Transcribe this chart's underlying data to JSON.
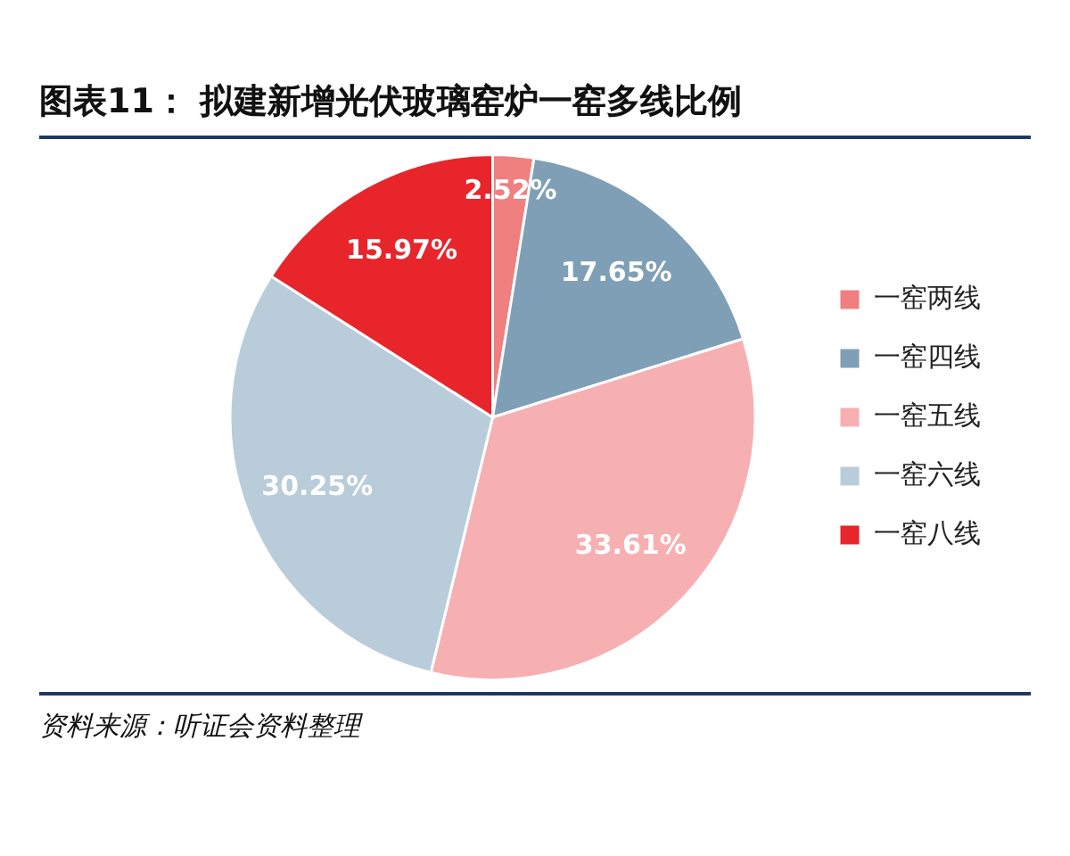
{
  "chart_data": {
    "type": "pie",
    "title": "图表11：  拟建新增光伏玻璃窑炉一窑多线比例",
    "categories": [
      "一窑两线",
      "一窑四线",
      "一窑五线",
      "一窑六线",
      "一窑八线"
    ],
    "values": [
      2.52,
      17.65,
      33.61,
      30.25,
      15.97
    ],
    "colors": [
      "#f07f7f",
      "#7f9fb6",
      "#f6b0b2",
      "#b9ccda",
      "#e8252b"
    ],
    "value_labels": [
      "2.52%",
      "17.65%",
      "33.61%",
      "30.25%",
      "15.97%"
    ],
    "legend": "right",
    "annotations": [
      "资料来源：听证会资料整理"
    ]
  }
}
